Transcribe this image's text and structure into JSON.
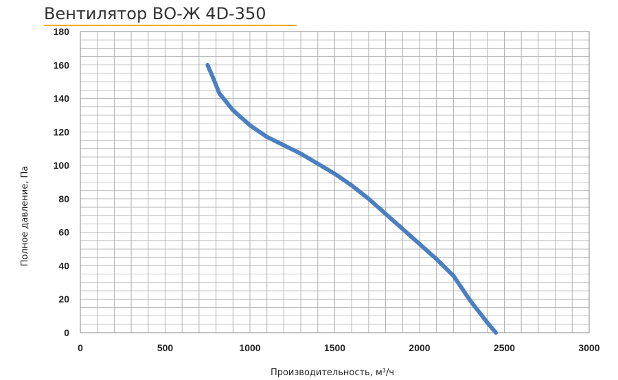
{
  "title": "Вентилятор ВО-Ж 4D-350",
  "colors": {
    "title_underline": "#f2a900",
    "series": "#4a7fc1",
    "grid": "#b0b0b0"
  },
  "chart_data": {
    "type": "line",
    "title": "Вентилятор ВО-Ж 4D-350",
    "xlabel": "Производительность, м³/ч",
    "ylabel": "Полное давление, Па",
    "xlim": [
      0,
      3000
    ],
    "ylim": [
      0,
      180
    ],
    "x_ticks": [
      "0",
      "500",
      "1000",
      "1500",
      "2000",
      "2500",
      "3000"
    ],
    "y_ticks": [
      "0",
      "20",
      "40",
      "60",
      "80",
      "100",
      "120",
      "140",
      "160",
      "180"
    ],
    "grid": true,
    "legend": "none",
    "series": [
      {
        "x": [
          750,
          780,
          820,
          900,
          1000,
          1100,
          1200,
          1300,
          1400,
          1500,
          1600,
          1700,
          1800,
          1900,
          2000,
          2100,
          2200,
          2300,
          2400,
          2450
        ],
        "y": [
          160,
          153,
          143,
          133,
          124,
          117,
          112,
          107,
          101,
          95,
          88,
          80,
          71,
          62,
          53,
          44,
          34,
          19,
          6,
          0
        ]
      }
    ]
  }
}
